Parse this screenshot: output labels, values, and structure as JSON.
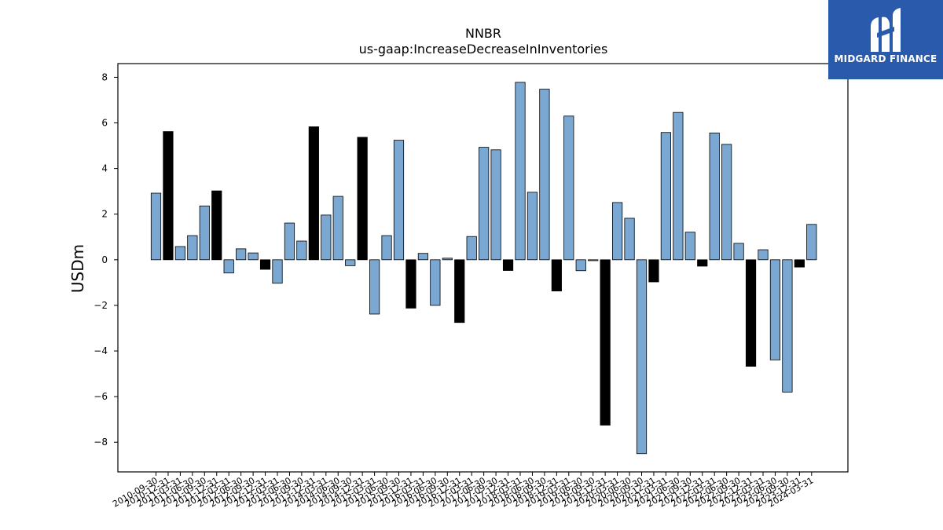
{
  "brand": {
    "name": "MIDGARD FINANCE",
    "bg_color": "#2a5aac",
    "icon": "midgard-logo-icon"
  },
  "chart_data": {
    "type": "bar",
    "title": "NNBR",
    "subtitle": "us-gaap:IncreaseDecreaseInInventories",
    "xlabel": "",
    "ylabel": "USDm",
    "ylim": [
      -9.3,
      8.6
    ],
    "yticks": [
      -8,
      -6,
      -4,
      -2,
      0,
      2,
      4,
      6,
      8
    ],
    "grid": false,
    "colors": {
      "default": "#7aa8d2",
      "highlight": "#000000",
      "edge": "#000000"
    },
    "categories": [
      "2010-09-30",
      "2010-12-31",
      "2011-03-31",
      "2011-06-30",
      "2011-09-30",
      "2011-12-31",
      "2012-03-31",
      "2012-06-30",
      "2012-09-30",
      "2012-12-31",
      "2013-03-31",
      "2013-06-30",
      "2013-09-30",
      "2013-12-31",
      "2014-03-31",
      "2014-06-30",
      "2014-09-30",
      "2014-12-31",
      "2015-03-31",
      "2015-06-30",
      "2015-09-30",
      "2015-12-31",
      "2016-03-31",
      "2016-06-30",
      "2016-09-30",
      "2016-12-31",
      "2017-03-31",
      "2017-06-30",
      "2017-09-30",
      "2017-12-31",
      "2018-03-31",
      "2018-06-30",
      "2018-09-30",
      "2018-12-31",
      "2019-03-31",
      "2019-06-30",
      "2019-09-30",
      "2019-12-31",
      "2020-03-31",
      "2020-06-30",
      "2020-09-30",
      "2020-12-31",
      "2021-03-31",
      "2021-06-30",
      "2021-09-30",
      "2021-12-31",
      "2022-03-31",
      "2022-06-30",
      "2022-09-30",
      "2022-12-31",
      "2023-03-31",
      "2023-06-30",
      "2023-09-30",
      "2023-12-31",
      "2024-03-31"
    ],
    "values": [
      2.92,
      5.62,
      0.58,
      1.06,
      2.36,
      3.02,
      -0.58,
      0.48,
      0.3,
      -0.42,
      -1.03,
      1.61,
      0.82,
      5.83,
      1.96,
      2.78,
      -0.26,
      5.37,
      -2.38,
      1.06,
      5.24,
      -2.12,
      0.28,
      -2.0,
      0.07,
      -2.75,
      1.02,
      4.93,
      4.82,
      -0.47,
      7.78,
      2.96,
      7.48,
      -1.37,
      6.3,
      -0.48,
      -0.04,
      -7.25,
      2.51,
      1.82,
      -8.5,
      -0.97,
      5.58,
      6.46,
      1.21,
      -0.28,
      5.56,
      5.06,
      0.72,
      -4.67,
      0.44,
      -4.39,
      -5.8,
      -0.32,
      1.55
    ],
    "highlight": [
      false,
      true,
      false,
      false,
      false,
      true,
      false,
      false,
      false,
      true,
      false,
      false,
      false,
      true,
      false,
      false,
      false,
      true,
      false,
      false,
      false,
      true,
      false,
      false,
      false,
      true,
      false,
      false,
      false,
      true,
      false,
      false,
      false,
      true,
      false,
      false,
      false,
      true,
      false,
      false,
      false,
      true,
      false,
      false,
      false,
      true,
      false,
      false,
      false,
      true,
      false,
      false,
      false,
      true,
      false
    ]
  }
}
